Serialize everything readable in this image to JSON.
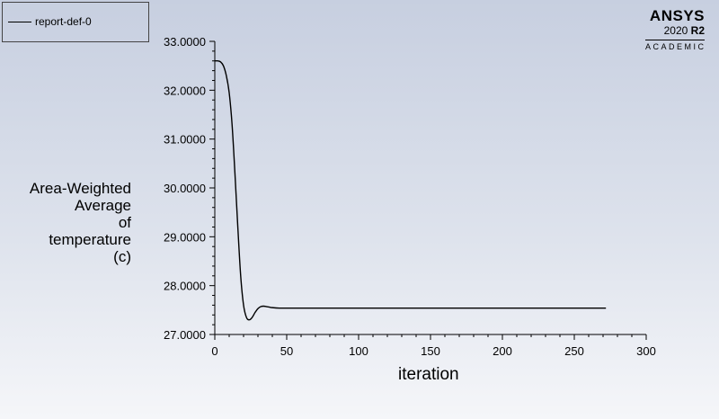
{
  "legend": {
    "entries": [
      "report-def-0"
    ]
  },
  "logo": {
    "name": "ANSYS",
    "version": "2020",
    "release": "R2",
    "edition": "ACADEMIC"
  },
  "chart_data": {
    "type": "line",
    "title": "",
    "xlabel": "iteration",
    "ylabel_lines": [
      "Area-Weighted",
      "Average",
      "of",
      "temperature",
      "(c)"
    ],
    "xlim": [
      0,
      300
    ],
    "ylim": [
      27.0,
      33.0
    ],
    "x_ticks": [
      0,
      50,
      100,
      150,
      200,
      250,
      300
    ],
    "y_ticks": [
      "27.0000",
      "28.0000",
      "29.0000",
      "30.0000",
      "31.0000",
      "32.0000",
      "33.0000"
    ],
    "grid": false,
    "legend_position": "top-left",
    "series": [
      {
        "name": "report-def-0",
        "color": "#000000",
        "x": [
          0,
          2,
          4,
          6,
          8,
          10,
          12,
          14,
          16,
          18,
          20,
          22,
          24,
          26,
          28,
          30,
          32,
          34,
          36,
          38,
          40,
          45,
          50,
          60,
          80,
          100,
          150,
          200,
          250,
          272
        ],
        "y": [
          32.6,
          32.6,
          32.58,
          32.5,
          32.3,
          31.95,
          31.3,
          30.3,
          29.2,
          28.2,
          27.6,
          27.35,
          27.3,
          27.35,
          27.45,
          27.53,
          27.57,
          27.58,
          27.57,
          27.56,
          27.55,
          27.54,
          27.54,
          27.54,
          27.54,
          27.54,
          27.54,
          27.54,
          27.54,
          27.54
        ]
      }
    ]
  }
}
